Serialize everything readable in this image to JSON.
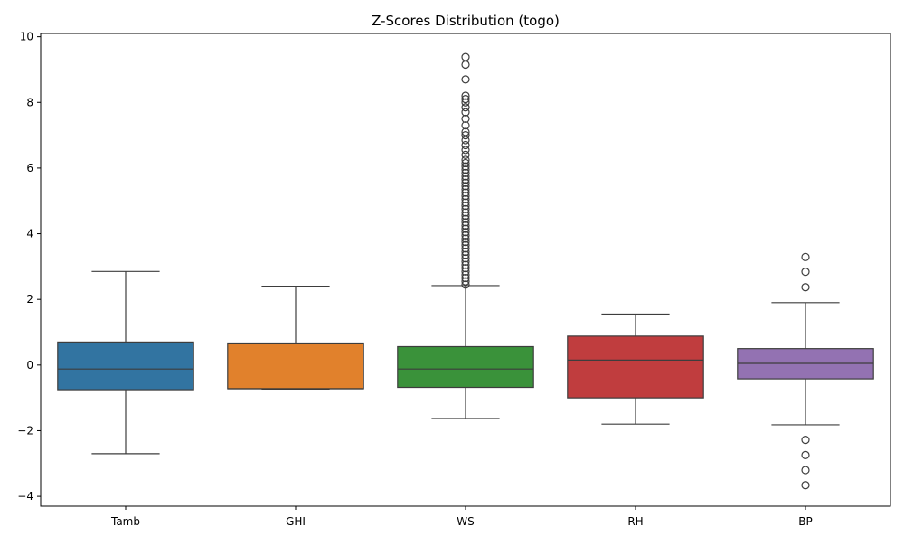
{
  "chart_data": {
    "type": "box",
    "title": "Z-Scores Distribution (togo)",
    "xlabel": "",
    "ylabel": "",
    "ylim": [
      -4.3,
      10.1
    ],
    "yticks": [
      -4,
      -2,
      0,
      2,
      4,
      6,
      8,
      10
    ],
    "ytick_labels": [
      "−4",
      "−2",
      "0",
      "2",
      "4",
      "6",
      "8",
      "10"
    ],
    "grid": false,
    "categories": [
      "Tamb",
      "GHI",
      "WS",
      "RH",
      "BP"
    ],
    "boxes": [
      {
        "category": "Tamb",
        "color": "#3274a1",
        "whisker_low": -2.7,
        "q1": -0.75,
        "median": -0.12,
        "q3": 0.7,
        "whisker_high": 2.85,
        "outliers": []
      },
      {
        "category": "GHI",
        "color": "#e1812c",
        "whisker_low": -0.73,
        "q1": -0.72,
        "median": -0.72,
        "q3": 0.67,
        "whisker_high": 2.4,
        "outliers": []
      },
      {
        "category": "WS",
        "color": "#3a923a",
        "whisker_low": -1.63,
        "q1": -0.68,
        "median": -0.12,
        "q3": 0.56,
        "whisker_high": 2.42,
        "outliers": [
          2.45,
          2.55,
          2.65,
          2.75,
          2.85,
          2.95,
          3.05,
          3.15,
          3.25,
          3.35,
          3.45,
          3.55,
          3.65,
          3.75,
          3.85,
          3.95,
          4.05,
          4.15,
          4.25,
          4.35,
          4.45,
          4.55,
          4.65,
          4.75,
          4.85,
          4.95,
          5.05,
          5.15,
          5.25,
          5.35,
          5.45,
          5.55,
          5.65,
          5.75,
          5.85,
          5.95,
          6.05,
          6.15,
          6.25,
          6.4,
          6.55,
          6.7,
          6.85,
          7.0,
          7.1,
          7.3,
          7.5,
          7.7,
          7.85,
          8.0,
          8.1,
          8.2,
          8.7,
          9.15,
          9.38
        ]
      },
      {
        "category": "RH",
        "color": "#c03d3e",
        "whisker_low": -1.8,
        "q1": -1.0,
        "median": 0.15,
        "q3": 0.88,
        "whisker_high": 1.55,
        "outliers": []
      },
      {
        "category": "BP",
        "color": "#9372b2",
        "whisker_low": -1.82,
        "q1": -0.42,
        "median": 0.05,
        "q3": 0.5,
        "whisker_high": 1.9,
        "outliers": [
          2.37,
          2.84,
          3.29,
          -2.28,
          -2.74,
          -3.2,
          -3.66
        ]
      }
    ]
  }
}
